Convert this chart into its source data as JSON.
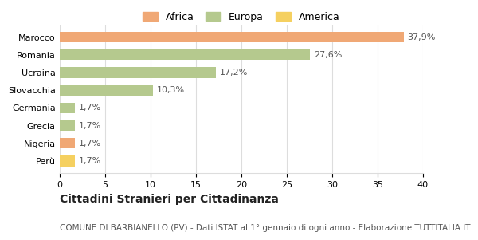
{
  "categories": [
    "Marocco",
    "Romania",
    "Ucraina",
    "Slovacchia",
    "Germania",
    "Grecia",
    "Nigeria",
    "Perù"
  ],
  "values": [
    37.9,
    27.6,
    17.2,
    10.3,
    1.7,
    1.7,
    1.7,
    1.7
  ],
  "colors": [
    "#f0a875",
    "#b5c98e",
    "#b5c98e",
    "#b5c98e",
    "#b5c98e",
    "#b5c98e",
    "#f0a875",
    "#f5d060"
  ],
  "bar_labels": [
    "37,9%",
    "27,6%",
    "17,2%",
    "10,3%",
    "1,7%",
    "1,7%",
    "1,7%",
    "1,7%"
  ],
  "legend_labels": [
    "Africa",
    "Europa",
    "America"
  ],
  "legend_colors": [
    "#f0a875",
    "#b5c98e",
    "#f5d060"
  ],
  "xlim": [
    0,
    40
  ],
  "xticks": [
    0,
    5,
    10,
    15,
    20,
    25,
    30,
    35,
    40
  ],
  "title": "Cittadini Stranieri per Cittadinanza",
  "subtitle": "COMUNE DI BARBIANELLO (PV) - Dati ISTAT al 1° gennaio di ogni anno - Elaborazione TUTTITALIA.IT",
  "title_fontsize": 10,
  "subtitle_fontsize": 7.5,
  "label_fontsize": 8,
  "tick_fontsize": 8,
  "background_color": "#ffffff",
  "grid_color": "#dddddd"
}
